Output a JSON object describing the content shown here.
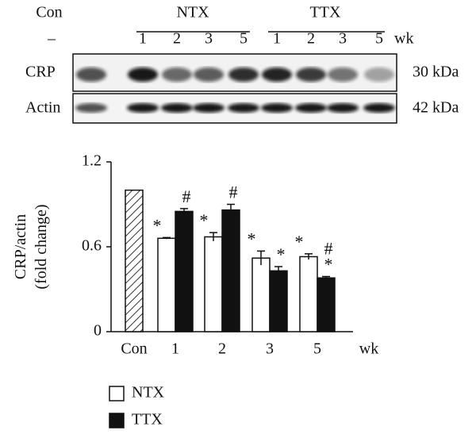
{
  "blot": {
    "groups": [
      "Con",
      "NTX",
      "TTX"
    ],
    "lanes": [
      "–",
      "1",
      "2",
      "3",
      "5",
      "1",
      "2",
      "3",
      "5"
    ],
    "lane_unit": "wk",
    "rows": [
      {
        "label": "CRP",
        "size": "30 kDa"
      },
      {
        "label": "Actin",
        "size": "42 kDa"
      }
    ]
  },
  "chart_data": {
    "type": "bar",
    "ylabel": [
      "CRP/actin",
      "(fold change)"
    ],
    "categories": [
      "Con",
      "1",
      "2",
      "3",
      "5"
    ],
    "x_unit": "wk",
    "control_value": 1.0,
    "series": [
      {
        "name": "NTX",
        "color": "#ffffff",
        "values": [
          null,
          0.66,
          0.67,
          0.52,
          0.53
        ],
        "errors": [
          null,
          0.005,
          0.03,
          0.05,
          0.02
        ],
        "annotations": [
          null,
          [
            "*"
          ],
          [
            "*"
          ],
          [
            "*"
          ],
          [
            "*"
          ]
        ]
      },
      {
        "name": "TTX",
        "color": "#111111",
        "values": [
          null,
          0.85,
          0.86,
          0.43,
          0.38
        ],
        "errors": [
          null,
          0.02,
          0.04,
          0.03,
          0.01
        ],
        "annotations": [
          null,
          [
            "#"
          ],
          [
            "#"
          ],
          [
            "*"
          ],
          [
            "#",
            "*"
          ]
        ]
      }
    ],
    "ylim": [
      0,
      1.2
    ],
    "yticks": [
      0,
      0.6,
      1.2
    ],
    "grid": false
  }
}
